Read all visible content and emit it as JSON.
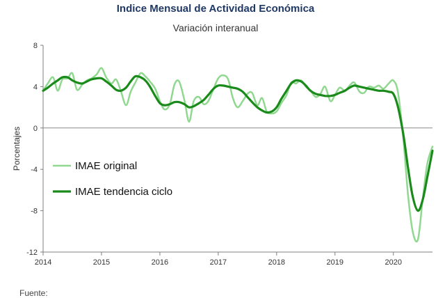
{
  "chart_data": {
    "type": "line",
    "title": "Indice Mensual de  Actividad Económica",
    "subtitle": "Variación interanual",
    "ylabel": "Porcentajes",
    "xlabel": "",
    "ylim": [
      -12,
      8
    ],
    "xlim": [
      2014,
      2020.67
    ],
    "yticks": [
      "8",
      "4",
      "0",
      "-4",
      "-8",
      "-12"
    ],
    "ytick_values": [
      8,
      4,
      0,
      -4,
      -8,
      -12
    ],
    "xticks": [
      "2014",
      "2015",
      "2016",
      "2017",
      "2018",
      "2019",
      "2020"
    ],
    "xtick_values": [
      2014,
      2015,
      2016,
      2017,
      2018,
      2019,
      2020
    ],
    "grid": "horizontal zero line only",
    "legend": "left-center",
    "series": [
      {
        "name": "IMAE original",
        "color": "#90d890",
        "x": [
          2014.0,
          2014.08,
          2014.17,
          2014.25,
          2014.33,
          2014.42,
          2014.5,
          2014.58,
          2014.67,
          2014.75,
          2014.83,
          2014.92,
          2015.0,
          2015.08,
          2015.17,
          2015.25,
          2015.33,
          2015.42,
          2015.5,
          2015.58,
          2015.67,
          2015.75,
          2015.83,
          2015.92,
          2016.0,
          2016.08,
          2016.17,
          2016.25,
          2016.33,
          2016.42,
          2016.5,
          2016.58,
          2016.67,
          2016.75,
          2016.83,
          2016.92,
          2017.0,
          2017.08,
          2017.17,
          2017.25,
          2017.33,
          2017.42,
          2017.5,
          2017.58,
          2017.67,
          2017.75,
          2017.83,
          2017.92,
          2018.0,
          2018.08,
          2018.17,
          2018.25,
          2018.33,
          2018.42,
          2018.5,
          2018.58,
          2018.67,
          2018.75,
          2018.83,
          2018.92,
          2019.0,
          2019.08,
          2019.17,
          2019.25,
          2019.33,
          2019.42,
          2019.5,
          2019.58,
          2019.67,
          2019.75,
          2019.83,
          2019.92,
          2020.0,
          2020.08,
          2020.17,
          2020.25,
          2020.33,
          2020.42,
          2020.5,
          2020.58,
          2020.67
        ],
        "values": [
          3.6,
          4.3,
          4.9,
          3.6,
          4.7,
          4.8,
          5.3,
          3.7,
          4.2,
          4.6,
          4.8,
          5.2,
          5.8,
          4.9,
          4.3,
          4.7,
          3.6,
          2.2,
          3.5,
          4.4,
          5.3,
          5.0,
          4.5,
          3.8,
          2.6,
          1.8,
          2.3,
          4.2,
          4.5,
          2.7,
          0.6,
          2.6,
          3.0,
          2.3,
          2.6,
          3.8,
          4.8,
          5.1,
          4.7,
          2.9,
          2.0,
          2.6,
          3.3,
          3.4,
          2.2,
          2.9,
          1.6,
          1.4,
          1.6,
          2.4,
          3.2,
          4.4,
          4.3,
          4.6,
          4.0,
          3.6,
          3.0,
          3.3,
          4.0,
          2.6,
          3.2,
          3.9,
          3.6,
          4.1,
          4.4,
          3.5,
          3.4,
          4.0,
          3.9,
          4.1,
          3.8,
          4.3,
          4.6,
          3.4,
          -1.0,
          -6.4,
          -10.0,
          -10.8,
          -7.0,
          -3.5,
          -1.8
        ]
      },
      {
        "name": "IMAE tendencia ciclo",
        "color": "#1a8a1a",
        "x": [
          2014.0,
          2014.08,
          2014.17,
          2014.25,
          2014.33,
          2014.42,
          2014.5,
          2014.58,
          2014.67,
          2014.75,
          2014.83,
          2014.92,
          2015.0,
          2015.08,
          2015.17,
          2015.25,
          2015.33,
          2015.42,
          2015.5,
          2015.58,
          2015.67,
          2015.75,
          2015.83,
          2015.92,
          2016.0,
          2016.08,
          2016.17,
          2016.25,
          2016.33,
          2016.42,
          2016.5,
          2016.58,
          2016.67,
          2016.75,
          2016.83,
          2016.92,
          2017.0,
          2017.08,
          2017.17,
          2017.25,
          2017.33,
          2017.42,
          2017.5,
          2017.58,
          2017.67,
          2017.75,
          2017.83,
          2017.92,
          2018.0,
          2018.08,
          2018.17,
          2018.25,
          2018.33,
          2018.42,
          2018.5,
          2018.58,
          2018.67,
          2018.75,
          2018.83,
          2018.92,
          2019.0,
          2019.08,
          2019.17,
          2019.25,
          2019.33,
          2019.42,
          2019.5,
          2019.58,
          2019.67,
          2019.75,
          2019.83,
          2019.92,
          2020.0,
          2020.08,
          2020.17,
          2020.25,
          2020.33,
          2020.42,
          2020.5,
          2020.58,
          2020.67
        ],
        "values": [
          3.6,
          3.9,
          4.3,
          4.6,
          4.9,
          4.9,
          4.6,
          4.4,
          4.3,
          4.5,
          4.7,
          4.8,
          4.8,
          4.5,
          4.1,
          3.7,
          3.6,
          3.9,
          4.5,
          5.0,
          4.9,
          4.6,
          4.0,
          3.1,
          2.4,
          2.2,
          2.3,
          2.5,
          2.5,
          2.3,
          2.0,
          2.1,
          2.4,
          2.7,
          3.2,
          3.8,
          4.1,
          4.1,
          4.0,
          3.9,
          3.8,
          3.5,
          3.0,
          2.5,
          2.0,
          1.7,
          1.5,
          1.6,
          2.0,
          2.8,
          3.6,
          4.3,
          4.6,
          4.5,
          4.1,
          3.6,
          3.3,
          3.2,
          3.1,
          3.1,
          3.2,
          3.4,
          3.6,
          3.9,
          4.1,
          4.0,
          3.9,
          3.8,
          3.7,
          3.6,
          3.6,
          3.5,
          3.3,
          2.0,
          -0.6,
          -3.8,
          -6.6,
          -8.0,
          -7.0,
          -4.8,
          -2.2
        ]
      }
    ]
  },
  "footer": "Fuente:"
}
